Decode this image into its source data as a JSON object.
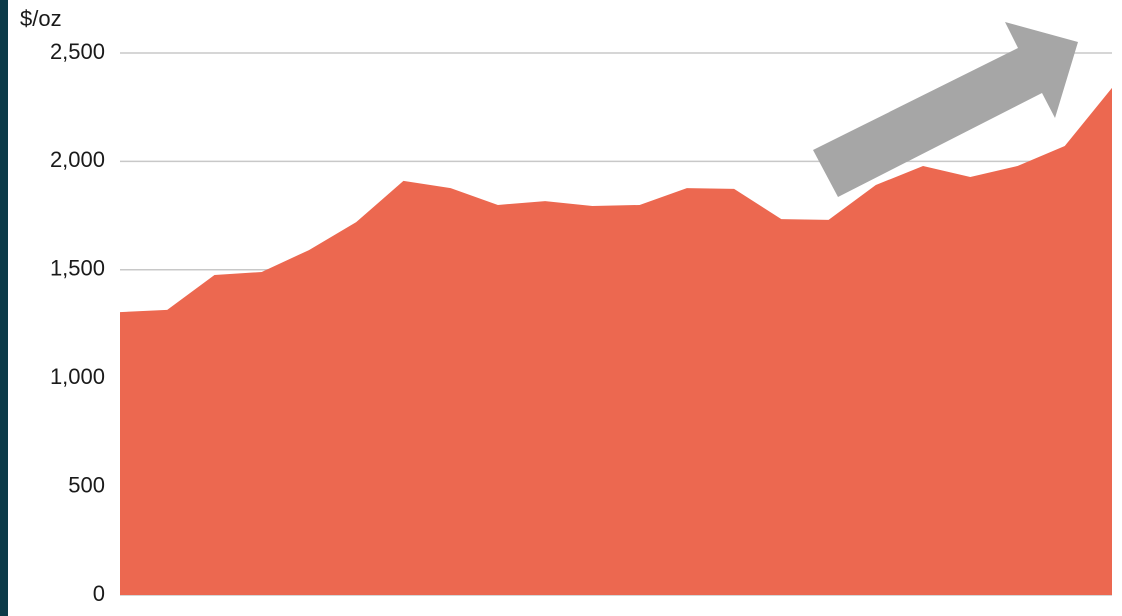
{
  "chart_data": {
    "type": "area",
    "y_label": "$/oz",
    "categories": [
      null,
      null,
      null,
      null,
      null,
      null,
      null,
      null,
      null,
      null,
      null,
      null,
      null,
      null,
      null,
      null,
      null,
      null,
      null,
      null,
      null,
      null
    ],
    "values": [
      1305,
      1315,
      1476,
      1490,
      1591,
      1720,
      1910,
      1877,
      1799,
      1817,
      1794,
      1799,
      1877,
      1873,
      1734,
      1730,
      1891,
      1979,
      1928,
      1979,
      2071,
      2339
    ],
    "color": "#ec6850",
    "ylim": [
      0,
      2500
    ],
    "yticks": [
      0,
      500,
      {
        "value": 1000,
        "label": "1,000"
      },
      {
        "value": 1500,
        "label": "1,500"
      },
      {
        "value": 2000,
        "label": "2,000"
      },
      {
        "value": 2500,
        "label": "2,500"
      }
    ],
    "grid": true
  }
}
